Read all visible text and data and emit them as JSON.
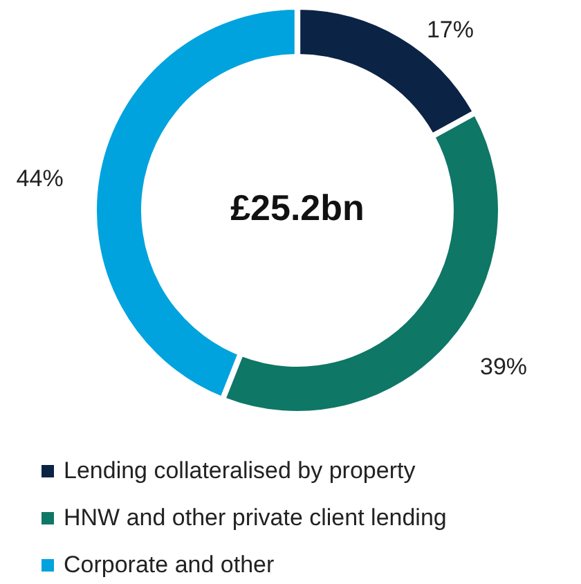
{
  "chart_data": {
    "type": "donut",
    "categories": [
      "Lending collateralised by property",
      "HNW and other private client lending",
      "Corporate and other"
    ],
    "values": [
      17,
      39,
      44
    ],
    "colors": [
      "#0b2345",
      "#0e7766",
      "#00a3dd"
    ],
    "value_labels": [
      "17%",
      "39%",
      "44%"
    ],
    "annotations": [
      "£25.2bn"
    ],
    "legend": "bottom"
  }
}
